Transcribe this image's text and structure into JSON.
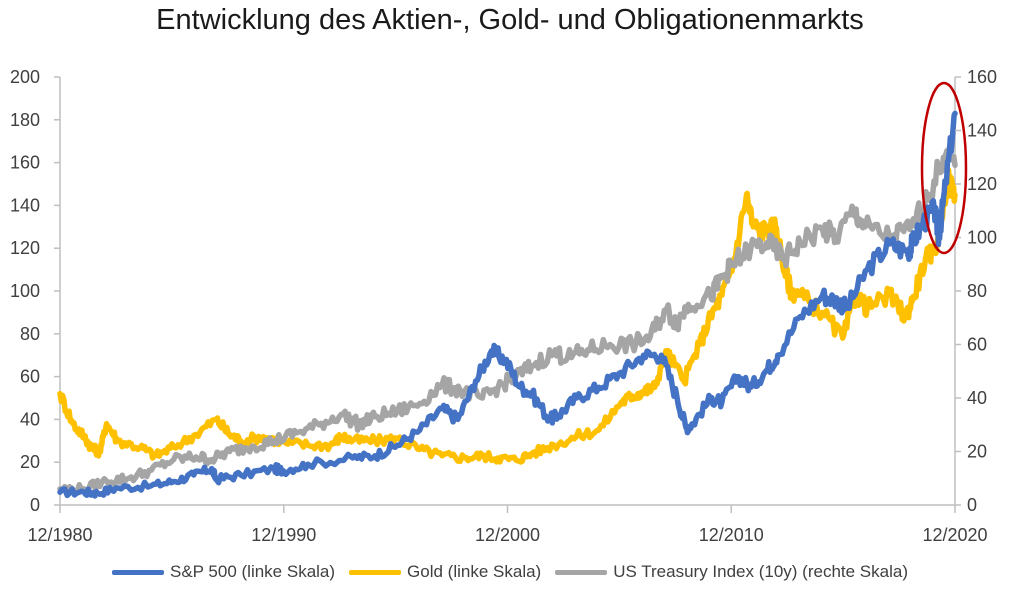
{
  "chart_data": {
    "type": "line",
    "title": "Entwicklung des Aktien-, Gold- und Obligationenmarkts",
    "x_labels": [
      "12/1980",
      "12/1990",
      "12/2000",
      "12/2010",
      "12/2020"
    ],
    "x_range": [
      1980.92,
      2020.92
    ],
    "y_left": {
      "min": 0,
      "max": 200,
      "ticks": [
        "0",
        "20",
        "40",
        "60",
        "80",
        "100",
        "120",
        "140",
        "160",
        "180",
        "200"
      ]
    },
    "y_right": {
      "min": 0,
      "max": 160,
      "ticks": [
        "0",
        "20",
        "40",
        "60",
        "80",
        "100",
        "120",
        "140",
        "160"
      ]
    },
    "series": [
      {
        "name": "S&P 500 (linke Skala)",
        "axis": "left",
        "color": "#4472C4",
        "points": [
          [
            1980.92,
            6
          ],
          [
            1982.0,
            6
          ],
          [
            1982.6,
            5.5
          ],
          [
            1983.5,
            8
          ],
          [
            1985.0,
            9
          ],
          [
            1986.0,
            11
          ],
          [
            1986.9,
            14
          ],
          [
            1987.7,
            17
          ],
          [
            1987.9,
            12
          ],
          [
            1989.0,
            14
          ],
          [
            1990.5,
            17
          ],
          [
            1990.9,
            16
          ],
          [
            1992.0,
            19
          ],
          [
            1994.0,
            22
          ],
          [
            1995.0,
            23
          ],
          [
            1996.0,
            28
          ],
          [
            1997.0,
            35
          ],
          [
            1998.0,
            45
          ],
          [
            1998.7,
            40
          ],
          [
            1999.5,
            58
          ],
          [
            2000.2,
            72
          ],
          [
            2000.8,
            68
          ],
          [
            2001.5,
            55
          ],
          [
            2002.0,
            52
          ],
          [
            2002.8,
            40
          ],
          [
            2003.2,
            42
          ],
          [
            2004.0,
            50
          ],
          [
            2005.0,
            55
          ],
          [
            2006.0,
            62
          ],
          [
            2007.0,
            70
          ],
          [
            2007.8,
            70
          ],
          [
            2008.5,
            50
          ],
          [
            2008.9,
            36
          ],
          [
            2009.2,
            38
          ],
          [
            2010.0,
            50
          ],
          [
            2010.5,
            48
          ],
          [
            2011.2,
            60
          ],
          [
            2011.8,
            55
          ],
          [
            2012.5,
            63
          ],
          [
            2013.0,
            70
          ],
          [
            2014.0,
            88
          ],
          [
            2015.0,
            98
          ],
          [
            2015.7,
            95
          ],
          [
            2016.1,
            92
          ],
          [
            2017.0,
            110
          ],
          [
            2018.0,
            122
          ],
          [
            2018.8,
            118
          ],
          [
            2019.0,
            122
          ],
          [
            2019.5,
            132
          ],
          [
            2020.0,
            138
          ],
          [
            2020.2,
            125
          ],
          [
            2020.5,
            150
          ],
          [
            2020.92,
            183
          ]
        ]
      },
      {
        "name": "Gold (linke Skala)",
        "axis": "left",
        "color": "#FFC000",
        "points": [
          [
            1980.92,
            52
          ],
          [
            1981.5,
            38
          ],
          [
            1982.0,
            32
          ],
          [
            1982.4,
            26
          ],
          [
            1982.7,
            25
          ],
          [
            1983.0,
            38
          ],
          [
            1983.5,
            30
          ],
          [
            1984.5,
            27
          ],
          [
            1985.2,
            23
          ],
          [
            1986.0,
            27
          ],
          [
            1987.0,
            33
          ],
          [
            1987.9,
            40
          ],
          [
            1988.5,
            33
          ],
          [
            1989.0,
            30
          ],
          [
            1990.0,
            32
          ],
          [
            1991.0,
            29
          ],
          [
            1992.0,
            28
          ],
          [
            1993.0,
            28
          ],
          [
            1993.5,
            32
          ],
          [
            1994.0,
            30
          ],
          [
            1995.0,
            30
          ],
          [
            1996.0,
            31
          ],
          [
            1997.0,
            26
          ],
          [
            1998.0,
            23
          ],
          [
            1999.0,
            22
          ],
          [
            1999.8,
            23
          ],
          [
            2000.5,
            22
          ],
          [
            2001.3,
            21
          ],
          [
            2002.0,
            24
          ],
          [
            2003.0,
            28
          ],
          [
            2004.0,
            32
          ],
          [
            2005.0,
            35
          ],
          [
            2006.0,
            48
          ],
          [
            2006.5,
            51
          ],
          [
            2007.0,
            53
          ],
          [
            2007.5,
            55
          ],
          [
            2008.0,
            72
          ],
          [
            2008.8,
            58
          ],
          [
            2009.5,
            75
          ],
          [
            2010.0,
            88
          ],
          [
            2010.5,
            98
          ],
          [
            2011.0,
            112
          ],
          [
            2011.6,
            145
          ],
          [
            2011.9,
            130
          ],
          [
            2012.5,
            128
          ],
          [
            2012.9,
            130
          ],
          [
            2013.3,
            110
          ],
          [
            2013.6,
            100
          ],
          [
            2014.0,
            98
          ],
          [
            2015.0,
            90
          ],
          [
            2015.9,
            78
          ],
          [
            2016.5,
            98
          ],
          [
            2017.0,
            92
          ],
          [
            2018.0,
            98
          ],
          [
            2018.7,
            88
          ],
          [
            2019.0,
            95
          ],
          [
            2019.6,
            115
          ],
          [
            2020.0,
            118
          ],
          [
            2020.6,
            152
          ],
          [
            2020.92,
            145
          ]
        ]
      },
      {
        "name": "US Treasury Index (10y) (rechte Skala)",
        "axis": "right",
        "color": "#A5A5A5",
        "points": [
          [
            1980.92,
            6
          ],
          [
            1982.0,
            6
          ],
          [
            1983.0,
            9
          ],
          [
            1984.0,
            10
          ],
          [
            1985.0,
            13
          ],
          [
            1986.0,
            17
          ],
          [
            1987.0,
            18
          ],
          [
            1987.7,
            17
          ],
          [
            1988.5,
            20
          ],
          [
            1989.5,
            22
          ],
          [
            1990.5,
            24
          ],
          [
            1991.5,
            27
          ],
          [
            1992.5,
            30
          ],
          [
            1993.5,
            34
          ],
          [
            1994.3,
            30
          ],
          [
            1995.0,
            33
          ],
          [
            1996.0,
            35
          ],
          [
            1997.0,
            38
          ],
          [
            1998.0,
            45
          ],
          [
            1998.8,
            43
          ],
          [
            1999.8,
            40
          ],
          [
            2000.5,
            44
          ],
          [
            2001.3,
            48
          ],
          [
            2002.0,
            52
          ],
          [
            2003.0,
            57
          ],
          [
            2003.6,
            55
          ],
          [
            2004.5,
            58
          ],
          [
            2005.5,
            60
          ],
          [
            2006.5,
            60
          ],
          [
            2007.3,
            63
          ],
          [
            2008.0,
            73
          ],
          [
            2008.5,
            68
          ],
          [
            2009.0,
            75
          ],
          [
            2010.0,
            78
          ],
          [
            2010.5,
            85
          ],
          [
            2011.0,
            90
          ],
          [
            2011.8,
            96
          ],
          [
            2012.5,
            98
          ],
          [
            2013.3,
            92
          ],
          [
            2014.0,
            98
          ],
          [
            2015.0,
            103
          ],
          [
            2015.6,
            100
          ],
          [
            2016.4,
            110
          ],
          [
            2016.9,
            104
          ],
          [
            2018.0,
            100
          ],
          [
            2018.9,
            103
          ],
          [
            2019.7,
            115
          ],
          [
            2020.4,
            130
          ],
          [
            2020.92,
            127
          ]
        ]
      }
    ]
  }
}
